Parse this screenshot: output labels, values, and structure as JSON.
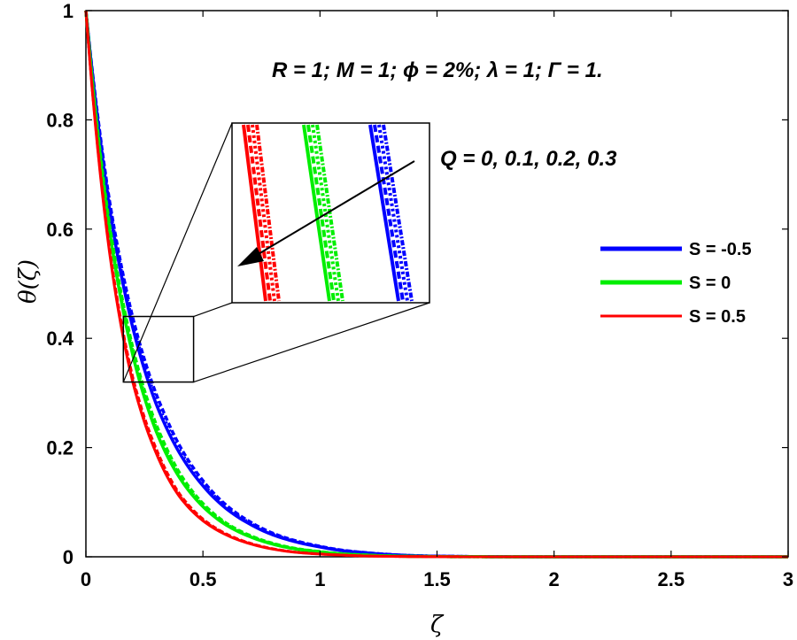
{
  "chart_data": {
    "type": "line",
    "xlabel": "ζ",
    "ylabel": "θ(ζ)",
    "xlim": [
      0,
      3
    ],
    "ylim": [
      0,
      1
    ],
    "x_ticks": [
      0,
      0.5,
      1,
      1.5,
      2,
      2.5,
      3
    ],
    "x_tick_labels": [
      "0",
      "0.5",
      "1",
      "1.5",
      "2",
      "2.5",
      "3"
    ],
    "y_ticks": [
      0,
      0.2,
      0.4,
      0.6,
      0.8,
      1
    ],
    "y_tick_labels": [
      "0",
      "0.2",
      "0.4",
      "0.6",
      "0.8",
      "1"
    ],
    "grid": false,
    "legend_position": "right",
    "annotations": {
      "params": "R = 1; M = 1; ϕ = 2%; λ = 1; Γ = 1.",
      "q_label": "Q = 0, 0.1, 0.2, 0.3"
    },
    "x": [
      0,
      0.1,
      0.2,
      0.3,
      0.4,
      0.5,
      0.6,
      0.7,
      0.8,
      0.9,
      1.0,
      1.1,
      1.2,
      1.3,
      1.4,
      1.5,
      1.6,
      1.7,
      1.8,
      2.0,
      2.5,
      3.0
    ],
    "series": [
      {
        "name": "S = -0.5",
        "color": "#0000ff",
        "values": [
          1.0,
          0.64,
          0.42,
          0.28,
          0.19,
          0.13,
          0.088,
          0.06,
          0.04,
          0.027,
          0.018,
          0.011,
          0.007,
          0.004,
          0.002,
          0.001,
          0.0006,
          0.0003,
          0.0001,
          0,
          0,
          0
        ]
      },
      {
        "name": "S = 0",
        "color": "#00ee00",
        "values": [
          1.0,
          0.6,
          0.37,
          0.23,
          0.145,
          0.092,
          0.058,
          0.037,
          0.023,
          0.014,
          0.009,
          0.005,
          0.003,
          0.0015,
          0.0008,
          0.0004,
          0.0002,
          0.0001,
          0,
          0,
          0,
          0
        ]
      },
      {
        "name": "S = 0.5",
        "color": "#ff0000",
        "values": [
          1.0,
          0.56,
          0.32,
          0.19,
          0.11,
          0.066,
          0.04,
          0.024,
          0.014,
          0.008,
          0.005,
          0.003,
          0.0015,
          0.0008,
          0.0004,
          0.0002,
          0.0001,
          0,
          0,
          0,
          0,
          0
        ]
      }
    ],
    "inset": {
      "x_range": [
        0.16,
        0.46
      ],
      "y_range": [
        0.32,
        0.44
      ],
      "q_values": [
        0,
        0.1,
        0.2,
        0.3
      ]
    }
  }
}
